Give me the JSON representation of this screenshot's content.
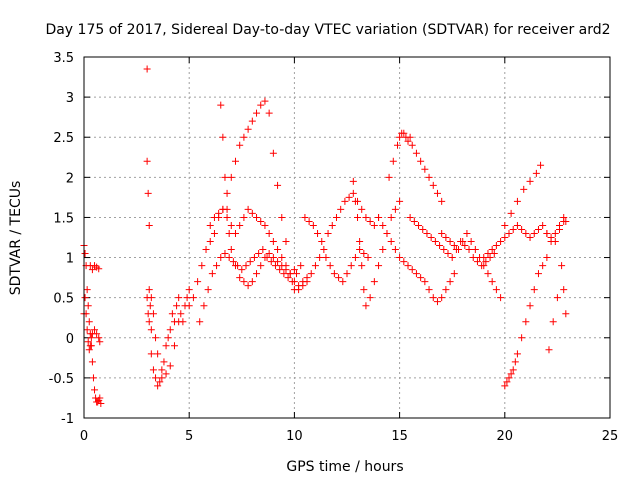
{
  "chart_data": {
    "type": "scatter",
    "title": "Day 175 of 2017, Sidereal Day-to-day VTEC variation (SDTVAR) for receiver ard2",
    "xlabel": "GPS time / hours",
    "ylabel": "SDTVAR / TECUs",
    "xlim": [
      0,
      25
    ],
    "ylim": [
      -1,
      3.5
    ],
    "xticks": [
      0,
      5,
      10,
      15,
      20,
      25
    ],
    "yticks": [
      -1,
      -0.5,
      0,
      0.5,
      1,
      1.5,
      2,
      2.5,
      3,
      3.5
    ],
    "xtick_labels": [
      "0",
      "5",
      "10",
      "15",
      "20",
      "25"
    ],
    "ytick_labels": [
      "-1",
      "-0.5",
      "0",
      "0.5",
      "1",
      "1.5",
      "2",
      "2.5",
      "3",
      "3.5"
    ],
    "grid": true,
    "marker": "+",
    "color": "#ff0000",
    "series": [
      {
        "name": "SDTVAR",
        "x": [
          0.0,
          0.05,
          0.1,
          0.15,
          0.2,
          0.25,
          0.3,
          0.35,
          0.4,
          0.45,
          0.5,
          0.55,
          0.6,
          0.65,
          0.7,
          0.75,
          0.8,
          0.0,
          0.05,
          0.1,
          0.15,
          0.2,
          0.25,
          0.3,
          0.35,
          0.4,
          0.5,
          0.6,
          0.7,
          0.75,
          0.3,
          0.4,
          0.5,
          0.6,
          0.7,
          3.0,
          3.0,
          3.05,
          3.1,
          3.0,
          3.05,
          3.1,
          3.15,
          3.2,
          3.1,
          3.2,
          3.3,
          3.4,
          3.5,
          3.6,
          3.7,
          3.8,
          3.9,
          4.0,
          4.1,
          4.2,
          4.3,
          4.4,
          4.5,
          4.6,
          4.7,
          4.8,
          4.9,
          5.0,
          3.2,
          3.3,
          3.4,
          3.5,
          3.7,
          3.9,
          4.1,
          4.3,
          4.5,
          5.0,
          5.2,
          5.4,
          5.6,
          5.8,
          6.0,
          6.2,
          6.4,
          6.6,
          6.8,
          7.0,
          7.2,
          7.4,
          7.6,
          7.8,
          8.0,
          8.2,
          8.4,
          8.6,
          8.8,
          9.0,
          9.2,
          9.4,
          9.6,
          5.5,
          5.7,
          5.9,
          6.1,
          6.3,
          6.5,
          6.7,
          6.9,
          7.1,
          7.3,
          7.5,
          7.7,
          7.9,
          8.1,
          8.3,
          8.5,
          8.7,
          8.9,
          9.1,
          9.3,
          9.5,
          9.7,
          9.9,
          10.1,
          10.3,
          6.5,
          6.6,
          6.7,
          6.8,
          6.9,
          7.0,
          7.2,
          7.4,
          7.6,
          7.8,
          8.0,
          8.2,
          8.4,
          8.6,
          8.8,
          9.0,
          9.2,
          9.4,
          9.6,
          9.8,
          10.0,
          6.0,
          6.2,
          6.4,
          6.6,
          6.8,
          7.0,
          7.2,
          7.4,
          7.6,
          7.8,
          8.0,
          8.2,
          8.4,
          8.6,
          8.8,
          9.0,
          9.2,
          9.4,
          9.6,
          9.8,
          10.0,
          10.2,
          10.4,
          10.6,
          10.0,
          10.2,
          10.4,
          10.6,
          10.8,
          11.0,
          11.2,
          11.4,
          11.6,
          11.8,
          12.0,
          12.2,
          12.4,
          12.6,
          12.8,
          13.0,
          13.2,
          13.4,
          13.6,
          13.8,
          14.0,
          10.5,
          10.7,
          10.9,
          11.1,
          11.3,
          11.5,
          11.7,
          11.9,
          12.1,
          12.3,
          12.5,
          12.7,
          12.9,
          13.1,
          13.3,
          13.5,
          12.8,
          12.9,
          13.0,
          13.1,
          13.2,
          13.3,
          13.4,
          13.6,
          13.8,
          14.0,
          14.2,
          14.4,
          14.6,
          14.8,
          15.0,
          14.5,
          14.7,
          14.9,
          15.0,
          15.1,
          15.2,
          15.3,
          15.4,
          15.5,
          15.6,
          15.8,
          16.0,
          16.2,
          16.4,
          16.6,
          16.8,
          17.0,
          14.0,
          14.2,
          14.4,
          14.6,
          14.8,
          15.0,
          15.2,
          15.4,
          15.6,
          15.8,
          16.0,
          16.2,
          16.4,
          16.6,
          16.8,
          17.0,
          17.2,
          17.4,
          17.6,
          15.5,
          15.7,
          15.9,
          16.1,
          16.3,
          16.5,
          16.7,
          16.9,
          17.1,
          17.3,
          17.5,
          17.7,
          17.9,
          18.1,
          18.3,
          18.5,
          18.7,
          18.9,
          19.1,
          19.3,
          19.5,
          17.0,
          17.2,
          17.4,
          17.6,
          17.8,
          18.0,
          18.2,
          18.4,
          18.6,
          18.8,
          19.0,
          19.2,
          19.4,
          19.6,
          19.8,
          19.0,
          19.2,
          19.4,
          19.6,
          19.8,
          20.0,
          20.2,
          20.4,
          20.6,
          20.8,
          21.0,
          21.2,
          21.4,
          21.6,
          21.8,
          22.0,
          22.2,
          22.4,
          22.6,
          22.8,
          20.0,
          20.1,
          20.2,
          20.3,
          20.4,
          20.5,
          20.6,
          20.8,
          21.0,
          21.2,
          21.4,
          21.6,
          21.8,
          22.0,
          20.0,
          20.3,
          20.6,
          20.9,
          21.2,
          21.5,
          21.7,
          22.0,
          22.2,
          22.4,
          22.6,
          22.8,
          22.9,
          22.7,
          22.5,
          22.3,
          22.1,
          22.9,
          22.8
        ],
        "y": [
          1.15,
          1.05,
          0.9,
          0.6,
          0.4,
          0.2,
          0.05,
          -0.1,
          -0.3,
          -0.5,
          -0.65,
          -0.75,
          -0.8,
          -0.8,
          -0.78,
          -0.75,
          -0.82,
          0.3,
          0.5,
          0.3,
          0.1,
          -0.05,
          -0.15,
          -0.1,
          0.0,
          0.05,
          0.1,
          0.05,
          0.0,
          -0.05,
          0.9,
          0.85,
          0.9,
          0.88,
          0.86,
          3.35,
          2.2,
          1.8,
          1.4,
          0.5,
          0.3,
          0.6,
          0.4,
          0.1,
          0.2,
          -0.2,
          -0.4,
          -0.5,
          -0.6,
          -0.55,
          -0.5,
          -0.3,
          -0.1,
          0.0,
          0.1,
          0.3,
          0.2,
          0.4,
          0.5,
          0.3,
          0.2,
          0.4,
          0.5,
          0.6,
          0.5,
          0.3,
          0.0,
          -0.2,
          -0.4,
          -0.45,
          -0.35,
          -0.1,
          0.2,
          0.4,
          0.5,
          0.7,
          0.9,
          1.1,
          1.2,
          1.3,
          1.5,
          1.6,
          1.8,
          2.0,
          2.2,
          2.4,
          2.5,
          2.6,
          2.7,
          2.8,
          2.9,
          2.95,
          2.8,
          2.3,
          1.9,
          1.5,
          1.2,
          0.2,
          0.4,
          0.6,
          0.8,
          0.9,
          1.0,
          1.05,
          1.0,
          0.95,
          0.9,
          0.85,
          0.9,
          0.95,
          1.0,
          1.05,
          1.1,
          1.0,
          0.95,
          0.9,
          0.85,
          0.8,
          0.75,
          0.7,
          0.8,
          0.9,
          2.9,
          2.5,
          2.0,
          1.6,
          1.3,
          1.1,
          0.9,
          0.75,
          0.7,
          0.65,
          0.7,
          0.8,
          0.9,
          1.0,
          1.05,
          1.0,
          0.95,
          0.9,
          0.85,
          0.8,
          0.85,
          1.4,
          1.5,
          1.55,
          1.6,
          1.5,
          1.4,
          1.3,
          1.4,
          1.5,
          1.6,
          1.55,
          1.5,
          1.45,
          1.4,
          1.3,
          1.2,
          1.1,
          1.0,
          0.9,
          0.8,
          0.7,
          0.6,
          0.65,
          0.7,
          0.6,
          0.65,
          0.7,
          0.75,
          0.8,
          0.9,
          1.0,
          1.1,
          1.3,
          1.4,
          1.5,
          1.6,
          1.7,
          1.75,
          1.8,
          1.7,
          1.6,
          1.5,
          1.45,
          1.4,
          1.5,
          1.5,
          1.45,
          1.4,
          1.3,
          1.2,
          1.0,
          0.9,
          0.8,
          0.75,
          0.7,
          0.8,
          0.9,
          1.0,
          1.1,
          1.05,
          1.0,
          1.95,
          1.7,
          1.5,
          1.2,
          0.9,
          0.6,
          0.4,
          0.5,
          0.7,
          0.9,
          1.1,
          1.3,
          1.5,
          1.6,
          1.7,
          2.0,
          2.2,
          2.4,
          2.5,
          2.55,
          2.55,
          2.5,
          2.45,
          2.5,
          2.4,
          2.3,
          2.2,
          2.1,
          2.0,
          1.9,
          1.8,
          1.7,
          1.5,
          1.4,
          1.3,
          1.2,
          1.1,
          1.0,
          0.95,
          0.9,
          0.85,
          0.8,
          0.75,
          0.7,
          0.6,
          0.5,
          0.45,
          0.5,
          0.6,
          0.7,
          0.8,
          1.5,
          1.45,
          1.4,
          1.35,
          1.3,
          1.25,
          1.2,
          1.15,
          1.1,
          1.05,
          1.0,
          1.1,
          1.2,
          1.15,
          1.1,
          1.0,
          0.95,
          0.9,
          0.95,
          1.0,
          1.05,
          1.3,
          1.25,
          1.2,
          1.15,
          1.1,
          1.2,
          1.3,
          1.2,
          1.1,
          1.0,
          0.9,
          0.8,
          0.7,
          0.6,
          0.5,
          1.0,
          1.05,
          1.1,
          1.15,
          1.2,
          1.25,
          1.3,
          1.35,
          1.4,
          1.35,
          1.3,
          1.25,
          1.3,
          1.35,
          1.4,
          1.3,
          1.2,
          1.3,
          1.4,
          1.45,
          -0.6,
          -0.55,
          -0.5,
          -0.45,
          -0.4,
          -0.3,
          -0.2,
          0.0,
          0.2,
          0.4,
          0.6,
          0.8,
          0.9,
          1.0,
          1.4,
          1.55,
          1.7,
          1.85,
          1.95,
          2.05,
          2.15,
          1.3,
          1.25,
          1.2,
          1.35,
          1.5,
          1.45,
          0.9,
          0.5,
          0.2,
          -0.15,
          0.3,
          0.6
        ]
      }
    ]
  }
}
